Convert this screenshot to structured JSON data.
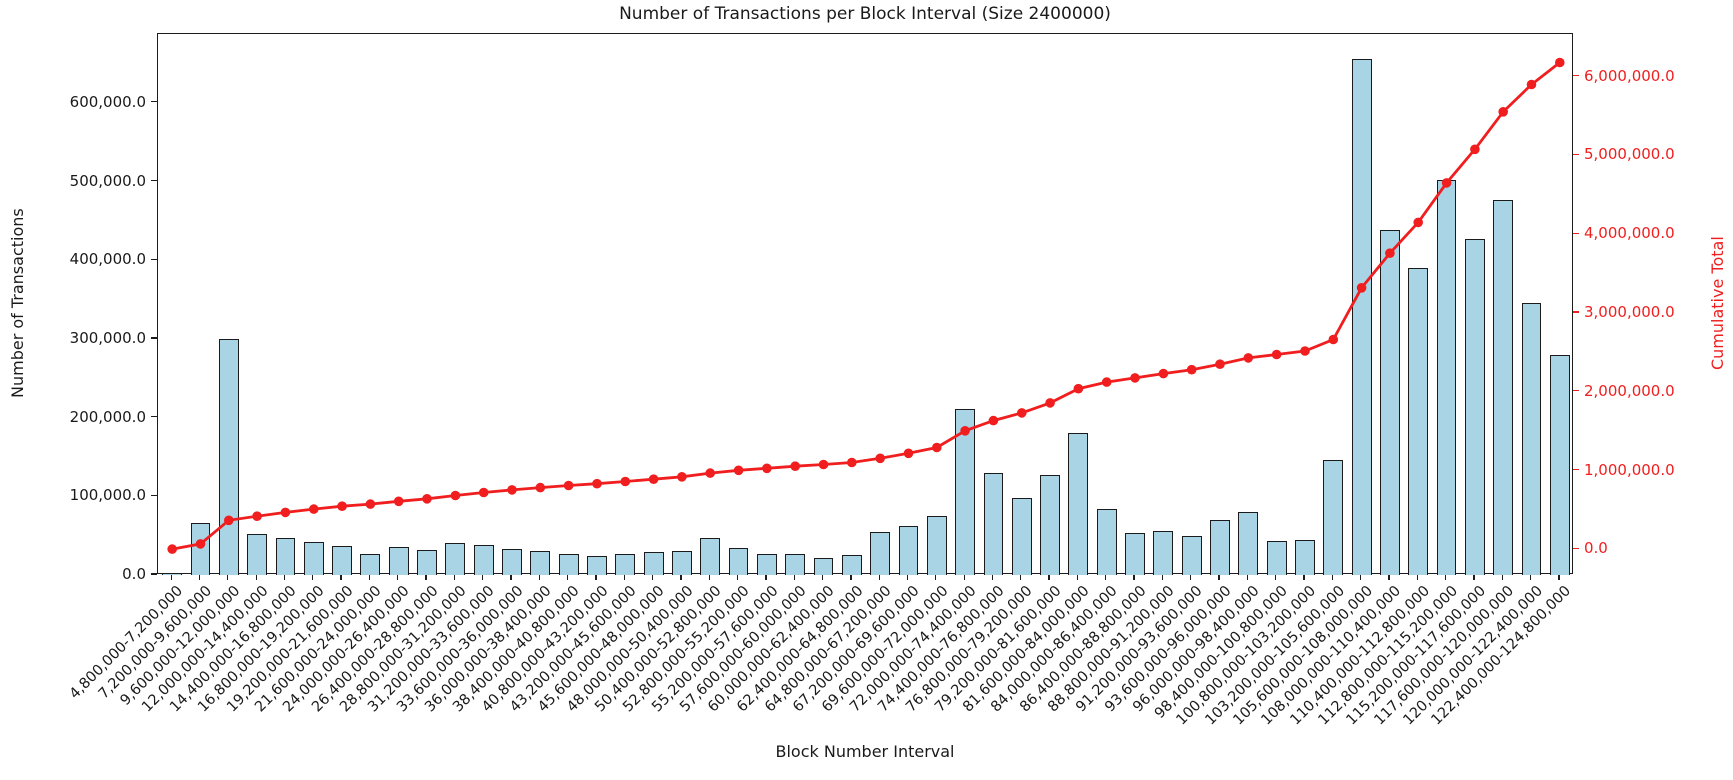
{
  "figure": {
    "title": "Number of Transactions per Block Interval (Size 2400000)",
    "x_axis_label": "Block Number Interval",
    "y_axis_left_label": "Number of Transactions",
    "y_axis_right_label": "Cumulative Total"
  },
  "colors": {
    "background": "#ffffff",
    "bar_fill": "#a9d4e5",
    "bar_edge": "#1b1b1b",
    "line": "#f01e1e",
    "axis_text": "#1a1a1a",
    "right_axis_text": "#f01e1e"
  },
  "chart_data": {
    "type": "bar",
    "title": "Number of Transactions per Block Interval (Size 2400000)",
    "xlabel": "Block Number Interval",
    "ylabel_left": "Number of Transactions",
    "ylabel_right": "Cumulative Total",
    "grid": false,
    "legend": "none",
    "categories": [
      "4,800,000-7,200,000",
      "7,200,000-9,600,000",
      "9,600,000-12,000,000",
      "12,000,000-14,400,000",
      "14,400,000-16,800,000",
      "16,800,000-19,200,000",
      "19,200,000-21,600,000",
      "21,600,000-24,000,000",
      "24,000,000-26,400,000",
      "26,400,000-28,800,000",
      "28,800,000-31,200,000",
      "31,200,000-33,600,000",
      "33,600,000-36,000,000",
      "36,000,000-38,400,000",
      "38,400,000-40,800,000",
      "40,800,000-43,200,000",
      "43,200,000-45,600,000",
      "45,600,000-48,000,000",
      "48,000,000-50,400,000",
      "50,400,000-52,800,000",
      "52,800,000-55,200,000",
      "55,200,000-57,600,000",
      "57,600,000-60,000,000",
      "60,000,000-62,400,000",
      "62,400,000-64,800,000",
      "64,800,000-67,200,000",
      "67,200,000-69,600,000",
      "69,600,000-72,000,000",
      "72,000,000-74,400,000",
      "74,400,000-76,800,000",
      "76,800,000-79,200,000",
      "79,200,000-81,600,000",
      "81,600,000-84,000,000",
      "84,000,000-86,400,000",
      "86,400,000-88,800,000",
      "88,800,000-91,200,000",
      "91,200,000-93,600,000",
      "93,600,000-96,000,000",
      "96,000,000-98,400,000",
      "98,400,000-100,800,000",
      "100,800,000-103,200,000",
      "103,200,000-105,600,000",
      "105,600,000-108,000,000",
      "108,000,000-110,400,000",
      "110,400,000-112,800,000",
      "112,800,000-115,200,000",
      "115,200,000-117,600,000",
      "117,600,000-120,000,000",
      "120,000,000-122,400,000",
      "122,400,000-124,800,000"
    ],
    "series": [
      {
        "name": "Number of Transactions",
        "type": "bar",
        "axis": "left",
        "values": [
          2500,
          66000,
          299500,
          52500,
          47400,
          42000,
          36600,
          27200,
          35700,
          31900,
          41100,
          37800,
          33000,
          30000,
          26200,
          23600,
          27000,
          29600,
          30900,
          47000,
          34700,
          26200,
          26700,
          21100,
          24900,
          54100,
          62600,
          74400,
          211200,
          129500,
          98200,
          127000,
          180300,
          83300,
          52800,
          55400,
          49900,
          69800,
          79500,
          42700,
          44800,
          146000,
          656100,
          438500,
          390700,
          502000,
          426700,
          476000,
          345400,
          279800
        ]
      },
      {
        "name": "Cumulative Total",
        "type": "line",
        "axis": "right",
        "marker": "circle",
        "values": [
          2500,
          68500,
          368000,
          420500,
          467900,
          509900,
          546500,
          573700,
          609400,
          641300,
          682400,
          720200,
          753200,
          783200,
          809400,
          833000,
          860000,
          889600,
          920500,
          967500,
          1002200,
          1028400,
          1055100,
          1076200,
          1101100,
          1155200,
          1217800,
          1292200,
          1503400,
          1632900,
          1731100,
          1858100,
          2038400,
          2121700,
          2174500,
          2229900,
          2279800,
          2349600,
          2429100,
          2471800,
          2516600,
          2662600,
          3318700,
          3757200,
          4147900,
          4649900,
          5076600,
          5552600,
          5898000,
          6177800
        ]
      }
    ],
    "left_axis": {
      "tick_values": [
        0,
        100000,
        200000,
        300000,
        400000,
        500000,
        600000
      ],
      "tick_labels": [
        "0.0",
        "100,000.0",
        "200,000.0",
        "300,000.0",
        "400,000.0",
        "500,000.0",
        "600,000.0"
      ],
      "range": [
        0,
        687500
      ]
    },
    "right_axis": {
      "tick_values": [
        0,
        1000000,
        2000000,
        3000000,
        4000000,
        5000000,
        6000000
      ],
      "tick_labels": [
        "0.0",
        "1,000,000.0",
        "2,000,000.0",
        "3,000,000.0",
        "4,000,000.0",
        "5,000,000.0",
        "6,000,000.0"
      ],
      "range": [
        -330000,
        6540000
      ]
    }
  }
}
